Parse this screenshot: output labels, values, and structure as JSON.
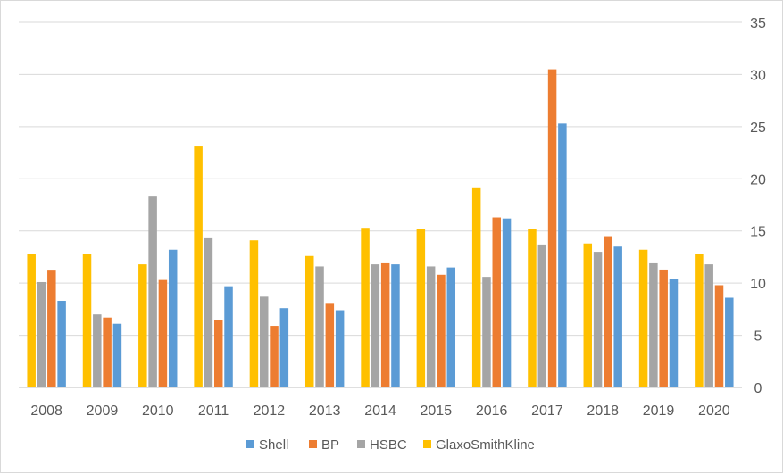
{
  "chart_data": {
    "type": "bar",
    "categories": [
      "2008",
      "2009",
      "2010",
      "2011",
      "2012",
      "2013",
      "2014",
      "2015",
      "2016",
      "2017",
      "2018",
      "2019",
      "2020"
    ],
    "series": [
      {
        "name": "GlaxoSmithKline",
        "color": "#ffc000",
        "values": [
          12.8,
          12.8,
          11.8,
          23.1,
          14.1,
          12.6,
          15.3,
          15.2,
          19.1,
          15.2,
          13.8,
          13.2,
          12.8
        ]
      },
      {
        "name": "HSBC",
        "color": "#a5a5a5",
        "values": [
          10.1,
          7.0,
          18.3,
          14.3,
          8.7,
          11.6,
          11.8,
          11.6,
          10.6,
          13.7,
          13.0,
          11.9,
          11.8
        ]
      },
      {
        "name": "BP",
        "color": "#ed7d31",
        "values": [
          11.2,
          6.7,
          10.3,
          6.5,
          5.9,
          8.1,
          11.9,
          10.8,
          16.3,
          30.5,
          14.5,
          11.3,
          9.8
        ]
      },
      {
        "name": "Shell",
        "color": "#5b9bd5",
        "values": [
          8.3,
          6.1,
          13.2,
          9.7,
          7.6,
          7.4,
          11.8,
          11.5,
          16.2,
          25.3,
          13.5,
          10.4,
          8.6
        ]
      }
    ],
    "legend_order": [
      "Shell",
      "BP",
      "HSBC",
      "GlaxoSmithKline"
    ],
    "y_ticks": [
      "0",
      "5",
      "10",
      "15",
      "20",
      "25",
      "30",
      "35"
    ],
    "ylim": [
      0,
      35
    ],
    "y_axis_side": "right",
    "grid": true,
    "legend_position": "bottom"
  }
}
